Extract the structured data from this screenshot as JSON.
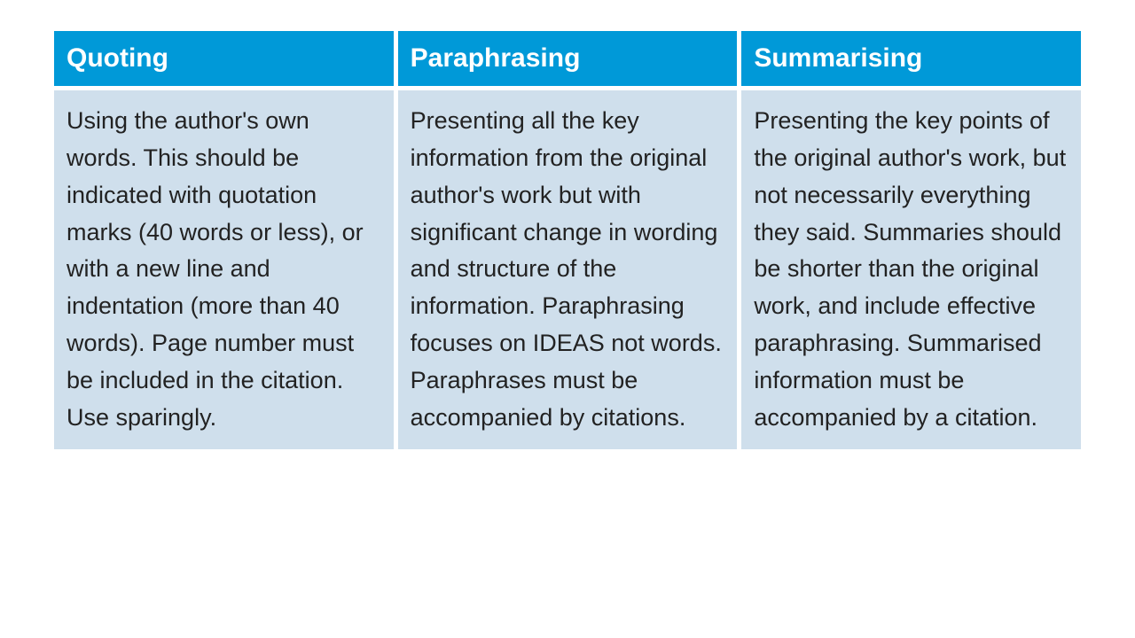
{
  "table": {
    "type": "table",
    "columns": [
      "Quoting",
      "Paraphrasing",
      "Summarising"
    ],
    "rows": [
      [
        "Using the author's own words. This should be indicated with quotation marks (40 words or less), or with a new line and indentation (more than 40 words). Page number must be included in the citation. Use sparingly.",
        "Presenting all the key information from the original author's work but with significant change in wording and structure of the information. Paraphrasing focuses on IDEAS not words. Paraphrases must be accompanied by citations.",
        "Presenting the key points of the original author's work, but not necessarily everything they said. Summaries should be shorter than the original work, and include effective paraphrasing. Summarised information must be accompanied by a citation."
      ]
    ],
    "header_background_color": "#0099d8",
    "header_text_color": "#ffffff",
    "header_fontsize": 30,
    "header_fontweight": "bold",
    "body_background_color": "#cfdfec",
    "body_text_color": "#222222",
    "body_fontsize": 27,
    "body_lineheight": 1.55,
    "cell_padding": 14,
    "border_spacing": 5,
    "page_background_color": "#ffffff",
    "column_count": 3,
    "column_widths_equal": true
  }
}
